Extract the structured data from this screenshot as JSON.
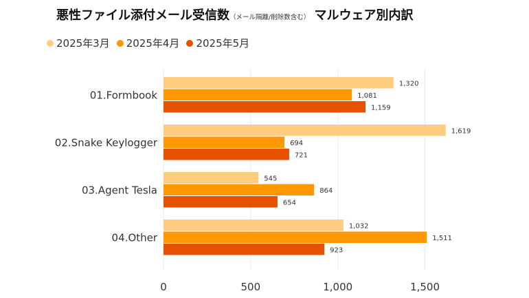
{
  "header": {
    "title_main": "悪性ファイル添付メール受信数",
    "title_sub": "（メール隔離/削除数含む）",
    "title_tail": "マルウェア別内訳"
  },
  "chart_data": {
    "type": "bar",
    "orientation": "horizontal",
    "categories": [
      "01.Formbook",
      "02.Snake Keylogger",
      "03.Agent Tesla",
      "04.Other"
    ],
    "series": [
      {
        "name": "2025年3月",
        "color": "#FFCC80",
        "values": [
          1320,
          1619,
          545,
          1032
        ]
      },
      {
        "name": "2025年4月",
        "color": "#FF9800",
        "values": [
          1081,
          694,
          864,
          1511
        ]
      },
      {
        "name": "2025年5月",
        "color": "#E65100",
        "values": [
          1159,
          721,
          654,
          923
        ]
      }
    ],
    "value_labels": [
      [
        "1,320",
        "1,619",
        "545",
        "1,032"
      ],
      [
        "1,081",
        "694",
        "864",
        "1,511"
      ],
      [
        "1,159",
        "721",
        "654",
        "923"
      ]
    ],
    "xticks": [
      0,
      500,
      1000,
      1500
    ],
    "xtick_labels": [
      "0",
      "500",
      "1,000",
      "1,500"
    ],
    "xlim": [
      0,
      1700
    ],
    "grid": true,
    "legend": "top-left"
  }
}
